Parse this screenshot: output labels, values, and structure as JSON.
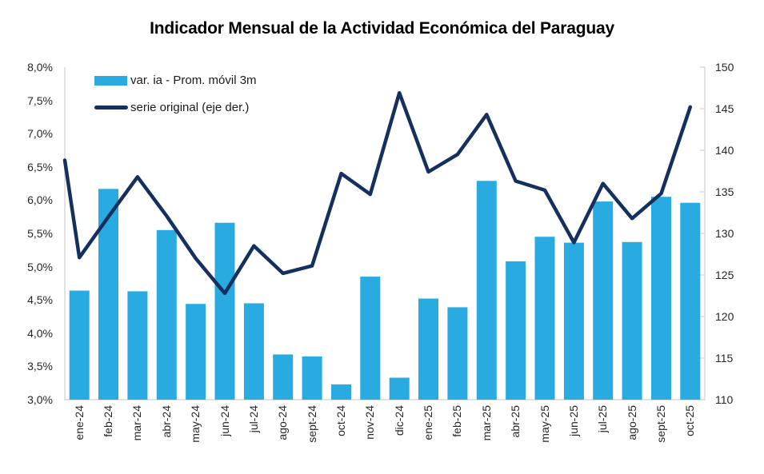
{
  "title": "Indicador Mensual de la Actividad Económica del Paraguay",
  "colors": {
    "bar": "#29ABE2",
    "line": "#14305E",
    "axis_line": "#D9D9D9",
    "axis_text": "#262626"
  },
  "legend": {
    "items": [
      {
        "label": "var. ia - Prom. móvil 3m",
        "swatch": "bar-swatch"
      },
      {
        "label": "serie original (eje der.)",
        "swatch": "line-swatch"
      }
    ]
  },
  "axes": {
    "left": {
      "tick_labels": [
        "8,0%",
        "7,5%",
        "7,0%",
        "6,5%",
        "6,0%",
        "5,5%",
        "5,0%",
        "4,5%",
        "4,0%",
        "3,5%",
        "3,0%"
      ]
    },
    "right": {
      "tick_labels": [
        "150",
        "145",
        "140",
        "135",
        "130",
        "125",
        "120",
        "115",
        "110"
      ]
    }
  },
  "chart_data": {
    "type": "bar",
    "title": "Indicador Mensual de la Actividad Económica del Paraguay",
    "categories": [
      "ene-24",
      "feb-24",
      "mar-24",
      "abr-24",
      "may-24",
      "jun-24",
      "jul-24",
      "ago-24",
      "sept-24",
      "oct-24",
      "nov-24",
      "dic-24",
      "ene-25",
      "feb-25",
      "mar-25",
      "abr-25",
      "may-25",
      "jun-25",
      "jul-25",
      "ago-25",
      "sept-25",
      "oct-25"
    ],
    "series": [
      {
        "name": "var. ia - Prom. móvil 3m",
        "type": "bar",
        "axis": "left",
        "unit": "%",
        "values": [
          4.64,
          6.17,
          4.63,
          5.55,
          4.44,
          5.66,
          4.45,
          3.68,
          3.65,
          3.23,
          4.85,
          3.33,
          4.52,
          4.39,
          6.29,
          5.08,
          5.45,
          5.36,
          5.98,
          5.37,
          6.05,
          5.96
        ]
      },
      {
        "name": "serie original (eje der.)",
        "type": "line",
        "axis": "right",
        "values": [
          127.1,
          132.0,
          136.8,
          132.1,
          127.0,
          122.8,
          128.5,
          125.2,
          126.1,
          137.2,
          134.7,
          146.9,
          137.4,
          139.5,
          144.3,
          136.3,
          135.2,
          128.9,
          136.0,
          131.8,
          134.8,
          145.2
        ],
        "visible_start_at_left_edge": 138.8
      }
    ],
    "left_ylim": [
      3.0,
      8.0
    ],
    "right_ylim": [
      110,
      150
    ],
    "grid": false,
    "legend_position": "top-left-inside"
  }
}
